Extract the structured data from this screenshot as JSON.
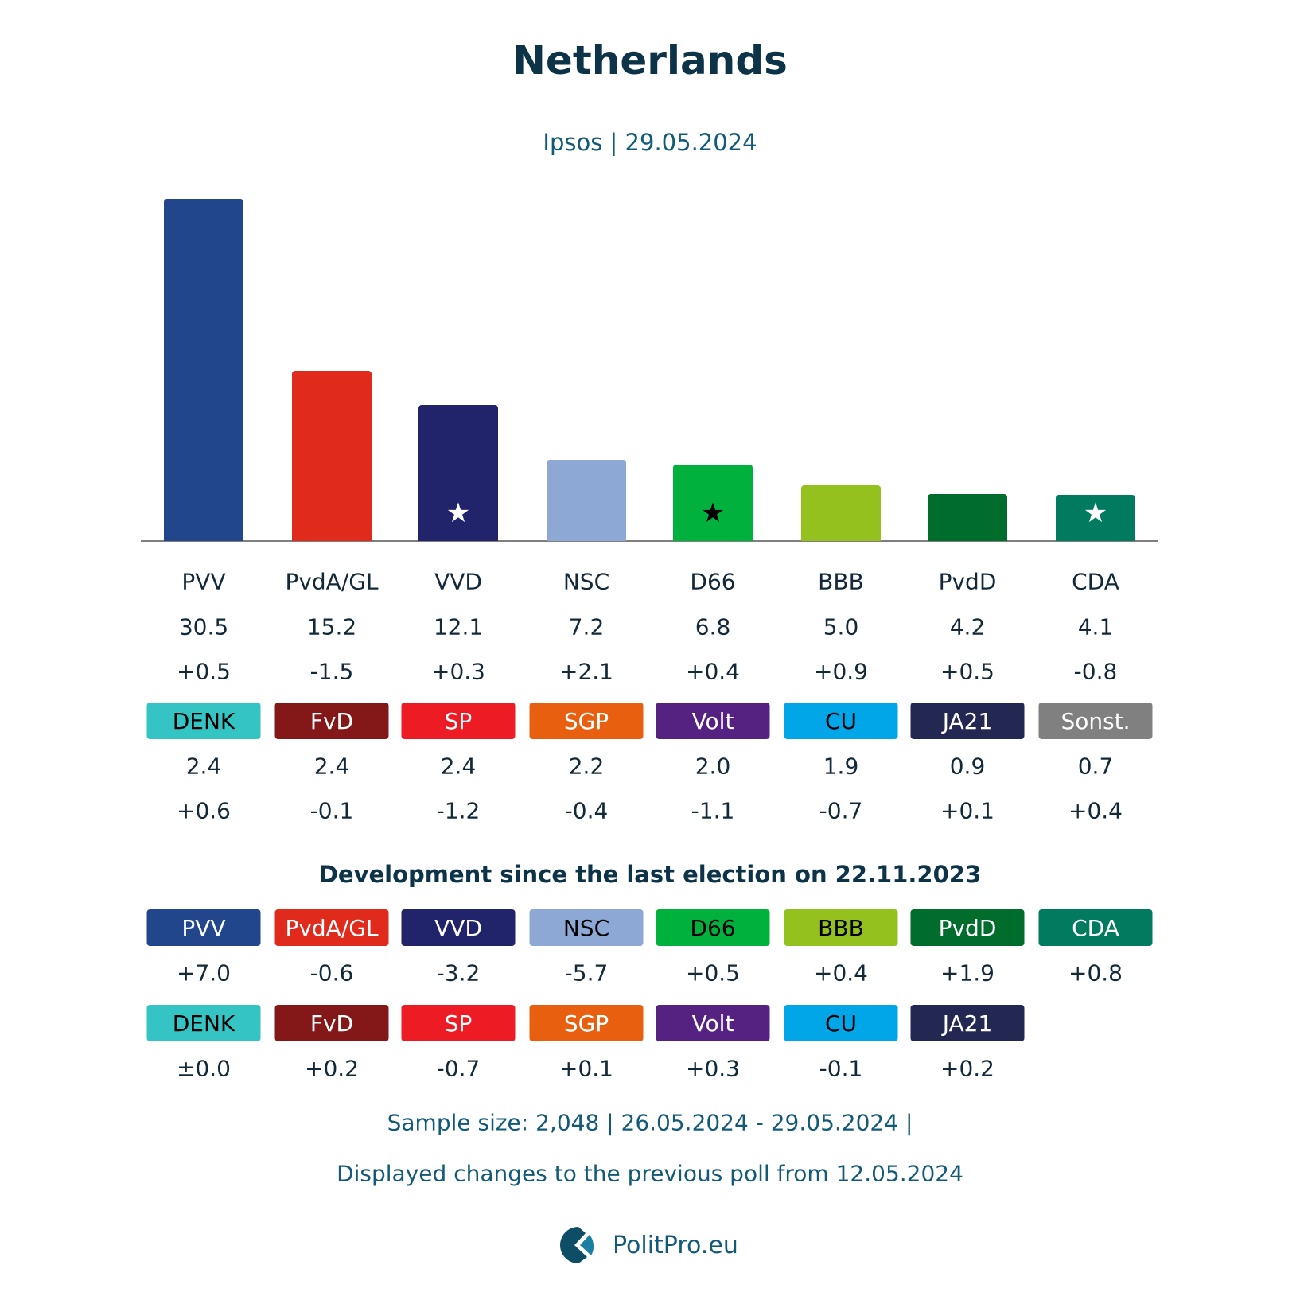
{
  "chart_data": {
    "type": "bar",
    "title": "Netherlands",
    "subtitle": "Ipsos | 29.05.2024",
    "categories": [
      "PVV",
      "PvdA/GL",
      "VVD",
      "NSC",
      "D66",
      "BBB",
      "PvdD",
      "CDA"
    ],
    "values": [
      30.5,
      15.2,
      12.1,
      7.2,
      6.8,
      5.0,
      4.2,
      4.1
    ],
    "value_labels": [
      "30.5",
      "15.2",
      "12.1",
      "7.2",
      "6.8",
      "5.0",
      "4.2",
      "4.1"
    ],
    "changes": [
      "+0.5",
      "-1.5",
      "+0.3",
      "+2.1",
      "+0.4",
      "+0.9",
      "+0.5",
      "-0.8"
    ],
    "colors": [
      "#21468b",
      "#e02b1c",
      "#21246a",
      "#8ea8d6",
      "#01b13e",
      "#95c11f",
      "#006d2c",
      "#007b5f"
    ],
    "stars": [
      null,
      null,
      "white",
      null,
      "black",
      null,
      null,
      "white"
    ],
    "grid": false
  },
  "small_parties": [
    {
      "name": "DENK",
      "value": "2.4",
      "change": "+0.6",
      "color": "#35c4c4",
      "text": "#000"
    },
    {
      "name": "FvD",
      "value": "2.4",
      "change": "-0.1",
      "color": "#841818",
      "text": "#fff"
    },
    {
      "name": "SP",
      "value": "2.4",
      "change": "-1.2",
      "color": "#ec1b24",
      "text": "#fff"
    },
    {
      "name": "SGP",
      "value": "2.2",
      "change": "-0.4",
      "color": "#e8600f",
      "text": "#fff"
    },
    {
      "name": "Volt",
      "value": "2.0",
      "change": "-1.1",
      "color": "#562281",
      "text": "#fff"
    },
    {
      "name": "CU",
      "value": "1.9",
      "change": "-0.7",
      "color": "#00a6e8",
      "text": "#000"
    },
    {
      "name": "JA21",
      "value": "0.9",
      "change": "+0.1",
      "color": "#232853",
      "text": "#fff"
    },
    {
      "name": "Sonst.",
      "value": "0.7",
      "change": "+0.4",
      "color": "#808080",
      "text": "#fff"
    }
  ],
  "development": {
    "title": "Development since the last election on 22.11.2023",
    "rows": [
      [
        {
          "name": "PVV",
          "change": "+7.0",
          "color": "#21468b",
          "text": "#fff"
        },
        {
          "name": "PvdA/GL",
          "change": "-0.6",
          "color": "#e02b1c",
          "text": "#fff"
        },
        {
          "name": "VVD",
          "change": "-3.2",
          "color": "#21246a",
          "text": "#fff"
        },
        {
          "name": "NSC",
          "change": "-5.7",
          "color": "#8ea8d6",
          "text": "#000"
        },
        {
          "name": "D66",
          "change": "+0.5",
          "color": "#01b13e",
          "text": "#000"
        },
        {
          "name": "BBB",
          "change": "+0.4",
          "color": "#95c11f",
          "text": "#000"
        },
        {
          "name": "PvdD",
          "change": "+1.9",
          "color": "#006d2c",
          "text": "#fff"
        },
        {
          "name": "CDA",
          "change": "+0.8",
          "color": "#007b5f",
          "text": "#fff"
        }
      ],
      [
        {
          "name": "DENK",
          "change": "±0.0",
          "color": "#35c4c4",
          "text": "#000"
        },
        {
          "name": "FvD",
          "change": "+0.2",
          "color": "#841818",
          "text": "#fff"
        },
        {
          "name": "SP",
          "change": "-0.7",
          "color": "#ec1b24",
          "text": "#fff"
        },
        {
          "name": "SGP",
          "change": "+0.1",
          "color": "#e8600f",
          "text": "#fff"
        },
        {
          "name": "Volt",
          "change": "+0.3",
          "color": "#562281",
          "text": "#fff"
        },
        {
          "name": "CU",
          "change": "-0.1",
          "color": "#00a6e8",
          "text": "#000"
        },
        {
          "name": "JA21",
          "change": "+0.2",
          "color": "#232853",
          "text": "#fff"
        }
      ]
    ]
  },
  "footer": {
    "sample": "Sample size: 2,048 | 26.05.2024 - 29.05.2024 |",
    "note": "Displayed changes to the previous poll from 12.05.2024",
    "brand": "PolitPro.eu"
  }
}
